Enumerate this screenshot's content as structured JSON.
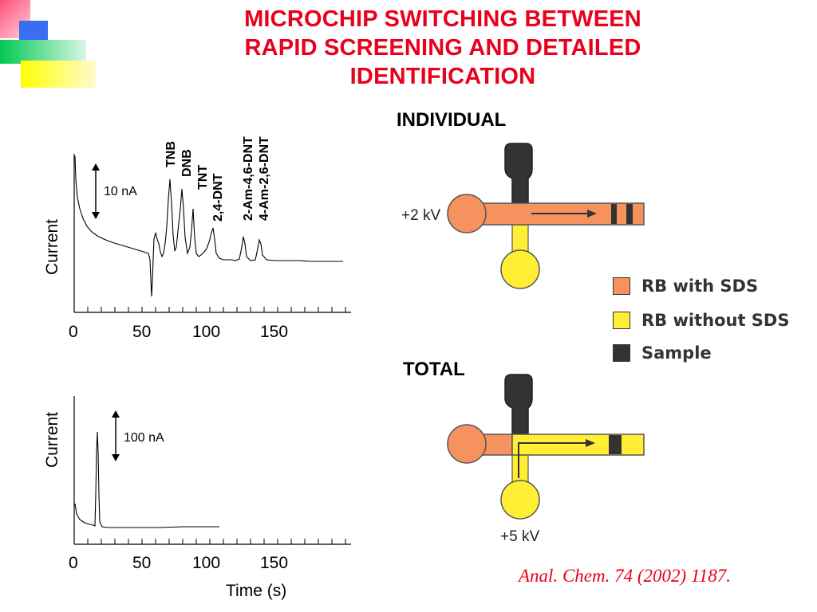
{
  "title": {
    "lines": [
      "MICROCHIP  SWITCHING  BETWEEN",
      "RAPID SCREENING AND  DETAILED",
      "IDENTIFICATION"
    ],
    "color": "#e8001c"
  },
  "top_plot": {
    "ylabel": "Current",
    "scale_bar": "10 nA",
    "x_ticks": [
      "0",
      "50",
      "100",
      "150"
    ],
    "peak_labels": [
      "TNB",
      "DNB",
      "TNT",
      "2,4-DNT",
      "2-Am-4,6-DNT",
      "4-Am-2,6-DNT"
    ]
  },
  "bottom_plot": {
    "ylabel": "Current",
    "scale_bar": "100 nA",
    "x_ticks": [
      "0",
      "50",
      "100",
      "150"
    ],
    "xlabel": "Time (s)"
  },
  "chip_individual": {
    "heading": "INDIVIDUAL",
    "voltage": "+2 kV"
  },
  "chip_total": {
    "heading": "TOTAL",
    "voltage": "+5 kV"
  },
  "legend": [
    {
      "label": "RB with SDS",
      "color": "#f5925d"
    },
    {
      "label": "RB without SDS",
      "color": "#ffee33"
    },
    {
      "label": "Sample",
      "color": "#333333"
    }
  ],
  "citation": "Anal. Chem. 74 (2002) 1187."
}
